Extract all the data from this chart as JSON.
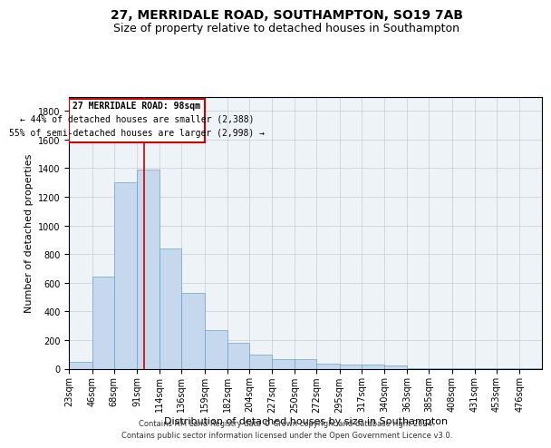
{
  "title": "27, MERRIDALE ROAD, SOUTHAMPTON, SO19 7AB",
  "subtitle": "Size of property relative to detached houses in Southampton",
  "xlabel": "Distribution of detached houses by size in Southampton",
  "ylabel": "Number of detached properties",
  "footer_line1": "Contains HM Land Registry data © Crown copyright and database right 2024.",
  "footer_line2": "Contains public sector information licensed under the Open Government Licence v3.0.",
  "annotation_title": "27 MERRIDALE ROAD: 98sqm",
  "annotation_line1": "← 44% of detached houses are smaller (2,388)",
  "annotation_line2": "55% of semi-detached houses are larger (2,998) →",
  "bar_color": "#c5d8ed",
  "bar_edge_color": "#6aa3cc",
  "vline_x": 98,
  "categories": [
    "23sqm",
    "46sqm",
    "68sqm",
    "91sqm",
    "114sqm",
    "136sqm",
    "159sqm",
    "182sqm",
    "204sqm",
    "227sqm",
    "250sqm",
    "272sqm",
    "295sqm",
    "317sqm",
    "340sqm",
    "363sqm",
    "385sqm",
    "408sqm",
    "431sqm",
    "453sqm",
    "476sqm"
  ],
  "bin_edges": [
    23,
    46,
    68,
    91,
    114,
    136,
    159,
    182,
    204,
    227,
    250,
    272,
    295,
    317,
    340,
    363,
    385,
    408,
    431,
    453,
    476,
    499
  ],
  "values": [
    50,
    640,
    1300,
    1390,
    840,
    530,
    270,
    180,
    100,
    65,
    65,
    35,
    30,
    30,
    20,
    5,
    5,
    5,
    5,
    2,
    2
  ],
  "ylim": [
    0,
    1900
  ],
  "yticks": [
    0,
    200,
    400,
    600,
    800,
    1000,
    1200,
    1400,
    1600,
    1800
  ],
  "background_color": "#ffffff",
  "grid_color": "#cccccc",
  "annotation_box_color": "#ffffff",
  "annotation_box_edge": "#cc0000",
  "vline_color": "#cc0000",
  "title_fontsize": 10,
  "subtitle_fontsize": 9,
  "axis_label_fontsize": 8,
  "tick_fontsize": 7,
  "annotation_fontsize": 7,
  "footer_fontsize": 6
}
